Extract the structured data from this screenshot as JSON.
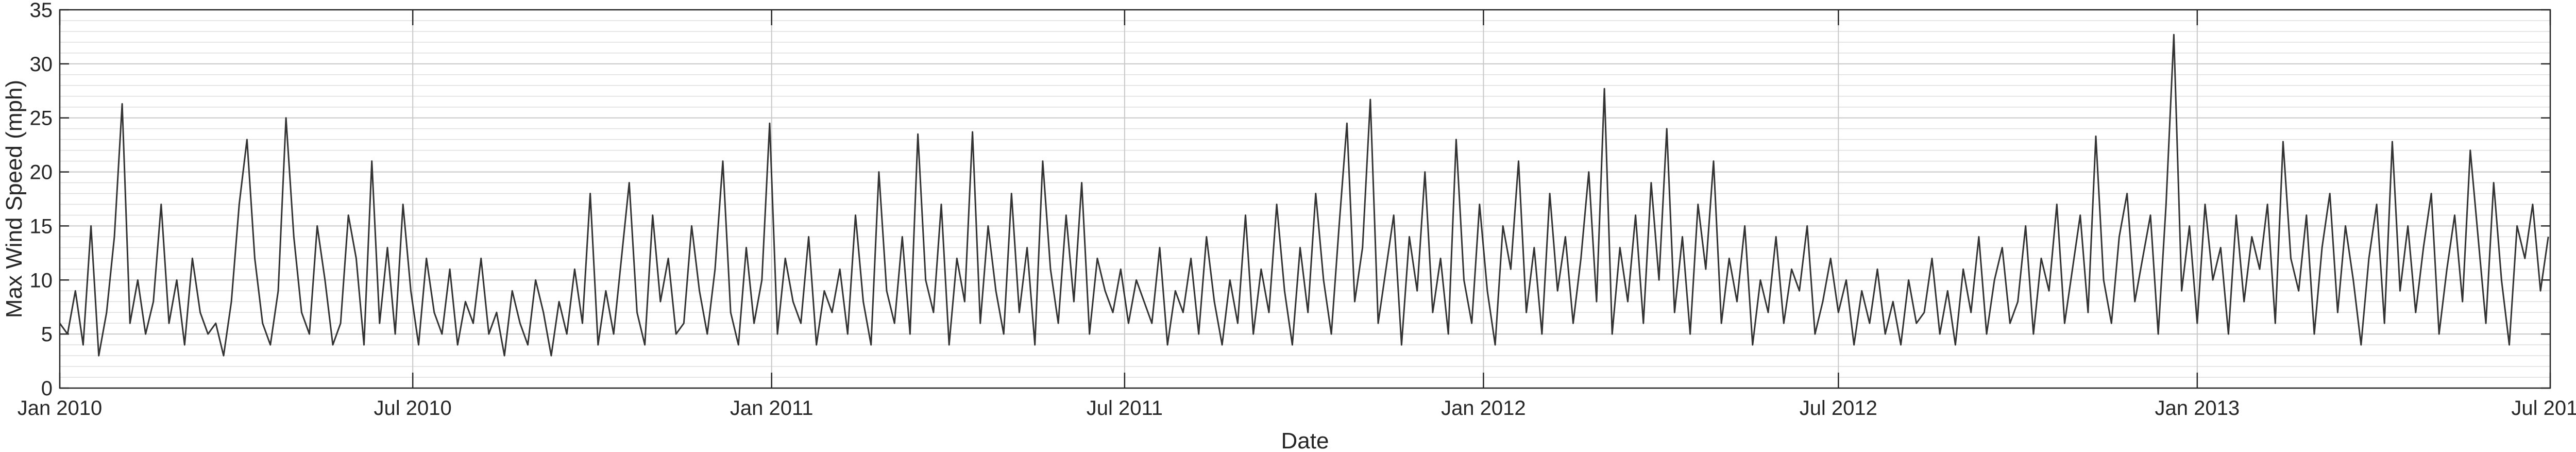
{
  "chart_data": {
    "type": "line",
    "xlabel": "Date",
    "ylabel": "Max Wind Speed (mph)",
    "xlim": [
      0,
      1277
    ],
    "xticks": [
      {
        "value": 0,
        "label": "Jan 2010"
      },
      {
        "value": 181,
        "label": "Jul 2010"
      },
      {
        "value": 365,
        "label": "Jan 2011"
      },
      {
        "value": 546,
        "label": "Jul 2011"
      },
      {
        "value": 730,
        "label": "Jan 2012"
      },
      {
        "value": 912,
        "label": "Jul 2012"
      },
      {
        "value": 1096,
        "label": "Jan 2013"
      },
      {
        "value": 1277,
        "label": "Jul 2013"
      }
    ],
    "ylim": [
      0,
      35
    ],
    "yticks": [
      0,
      5,
      10,
      15,
      20,
      25,
      30,
      35
    ],
    "minor_yticks": [
      1,
      2,
      3,
      4,
      6,
      7,
      8,
      9,
      11,
      12,
      13,
      14,
      16,
      17,
      18,
      19,
      21,
      22,
      23,
      24,
      26,
      27,
      28,
      29,
      31,
      32,
      33,
      34
    ],
    "grid": true,
    "color": "#333333",
    "x": [
      0,
      4,
      8,
      12,
      16,
      20,
      24,
      28,
      32,
      36,
      40,
      44,
      48,
      52,
      56,
      60,
      64,
      68,
      72,
      76,
      80,
      84,
      88,
      92,
      96,
      100,
      104,
      108,
      112,
      116,
      120,
      124,
      128,
      132,
      136,
      140,
      144,
      148,
      152,
      156,
      160,
      164,
      168,
      172,
      176,
      180,
      184,
      188,
      192,
      196,
      200,
      204,
      208,
      212,
      216,
      220,
      224,
      228,
      232,
      236,
      240,
      244,
      248,
      252,
      256,
      260,
      264,
      268,
      272,
      276,
      280,
      284,
      288,
      292,
      296,
      300,
      304,
      308,
      312,
      316,
      320,
      324,
      328,
      332,
      336,
      340,
      344,
      348,
      352,
      356,
      360,
      364,
      368,
      372,
      376,
      380,
      384,
      388,
      392,
      396,
      400,
      404,
      408,
      412,
      416,
      420,
      424,
      428,
      432,
      436,
      440,
      444,
      448,
      452,
      456,
      460,
      464,
      468,
      472,
      476,
      480,
      484,
      488,
      492,
      496,
      500,
      504,
      508,
      512,
      516,
      520,
      524,
      528,
      532,
      536,
      540,
      544,
      548,
      552,
      556,
      560,
      564,
      568,
      572,
      576,
      580,
      584,
      588,
      592,
      596,
      600,
      604,
      608,
      612,
      616,
      620,
      624,
      628,
      632,
      636,
      640,
      644,
      648,
      652,
      656,
      660,
      664,
      668,
      672,
      676,
      680,
      684,
      688,
      692,
      696,
      700,
      704,
      708,
      712,
      716,
      720,
      724,
      728,
      732,
      736,
      740,
      744,
      748,
      752,
      756,
      760,
      764,
      768,
      772,
      776,
      780,
      784,
      788,
      792,
      796,
      800,
      804,
      808,
      812,
      816,
      820,
      824,
      828,
      832,
      836,
      840,
      844,
      848,
      852,
      856,
      860,
      864,
      868,
      872,
      876,
      880,
      884,
      888,
      892,
      896,
      900,
      904,
      908,
      912,
      916,
      920,
      924,
      928,
      932,
      936,
      940,
      944,
      948,
      952,
      956,
      960,
      964,
      968,
      972,
      976,
      980,
      984,
      988,
      992,
      996,
      1000,
      1004,
      1008,
      1012,
      1016,
      1020,
      1024,
      1028,
      1032,
      1036,
      1040,
      1044,
      1048,
      1052,
      1056,
      1060,
      1064,
      1068,
      1072,
      1076,
      1080,
      1084,
      1088,
      1092,
      1096,
      1100,
      1104,
      1108,
      1112,
      1116,
      1120,
      1124,
      1128,
      1132,
      1136,
      1140,
      1144,
      1148,
      1152,
      1156,
      1160,
      1164,
      1168,
      1172,
      1176,
      1180,
      1184,
      1188,
      1192,
      1196,
      1200,
      1204,
      1208,
      1212,
      1216,
      1220,
      1224,
      1228,
      1232,
      1236,
      1240,
      1244,
      1248,
      1252,
      1256,
      1260,
      1264,
      1268,
      1272,
      1276
    ],
    "values": [
      6,
      5,
      9,
      4,
      15,
      3,
      7,
      14,
      26.3,
      6,
      10,
      5,
      8,
      17,
      6,
      10,
      4,
      12,
      7,
      5,
      6,
      3,
      8,
      17,
      23,
      12,
      6,
      4,
      9,
      25,
      14,
      7,
      5,
      15,
      10,
      4,
      6,
      16,
      12,
      4,
      21,
      6,
      13,
      5,
      17,
      9,
      4,
      12,
      7,
      5,
      11,
      4,
      8,
      6,
      12,
      5,
      7,
      3,
      9,
      6,
      4,
      10,
      7,
      3,
      8,
      5,
      11,
      6,
      18,
      4,
      9,
      5,
      12,
      19,
      7,
      4,
      16,
      8,
      12,
      5,
      6,
      15,
      9,
      5,
      11,
      21,
      7,
      4,
      13,
      6,
      10,
      24.5,
      5,
      12,
      8,
      6,
      14,
      4,
      9,
      7,
      11,
      5,
      16,
      8,
      4,
      20,
      9,
      6,
      14,
      5,
      23.5,
      10,
      7,
      17,
      4,
      12,
      8,
      23.7,
      6,
      15,
      9,
      5,
      18,
      7,
      13,
      4,
      21,
      11,
      6,
      16,
      8,
      19,
      5,
      12,
      9,
      7,
      11,
      6,
      10,
      8,
      6,
      13,
      4,
      9,
      7,
      12,
      5,
      14,
      8,
      4,
      10,
      6,
      16,
      5,
      11,
      7,
      17,
      9,
      4,
      13,
      7,
      18,
      10,
      5,
      15,
      24.5,
      8,
      13,
      26.7,
      6,
      11,
      16,
      4,
      14,
      9,
      20,
      7,
      12,
      5,
      23,
      10,
      6,
      17,
      9,
      4,
      15,
      11,
      21,
      7,
      13,
      5,
      18,
      9,
      14,
      6,
      12,
      20,
      8,
      27.7,
      5,
      13,
      8,
      16,
      6,
      19,
      10,
      24,
      7,
      14,
      5,
      17,
      11,
      21,
      6,
      12,
      8,
      15,
      4,
      10,
      7,
      14,
      6,
      11,
      9,
      15,
      5,
      8,
      12,
      7,
      10,
      4,
      9,
      6,
      11,
      5,
      8,
      4,
      10,
      6,
      7,
      12,
      5,
      9,
      4,
      11,
      7,
      14,
      5,
      10,
      13,
      6,
      8,
      15,
      5,
      12,
      9,
      17,
      6,
      11,
      16,
      7,
      23.3,
      10,
      6,
      14,
      18,
      8,
      12,
      16,
      5,
      17,
      32.7,
      9,
      15,
      6,
      17,
      10,
      13,
      5,
      16,
      8,
      14,
      11,
      17,
      6,
      22.8,
      12,
      9,
      16,
      5,
      13,
      18,
      7,
      15,
      10,
      4,
      12,
      17,
      6,
      22.8,
      9,
      15,
      7,
      13,
      18,
      5,
      11,
      16,
      8,
      22,
      14,
      6,
      19,
      10,
      4,
      15,
      12,
      17,
      9,
      14
    ]
  }
}
